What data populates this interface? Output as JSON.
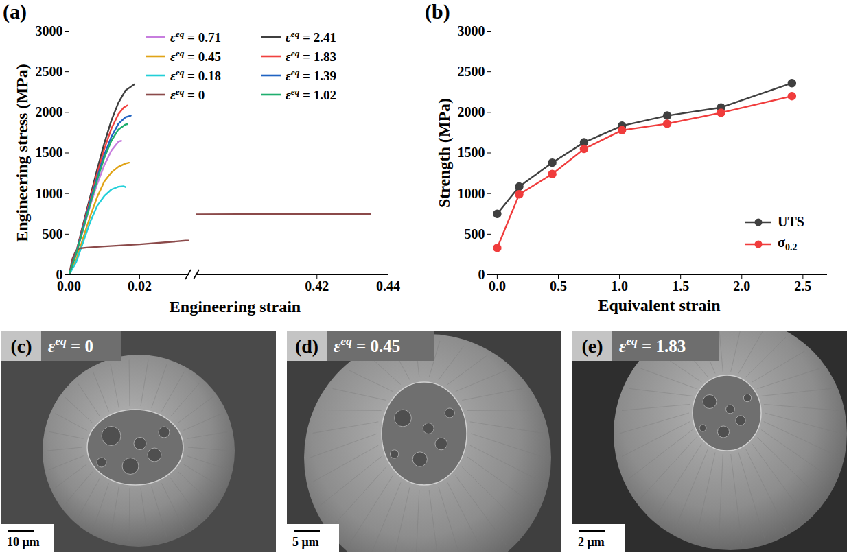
{
  "chart_data": [
    {
      "type": "line",
      "title": "(a)",
      "x_label": "Engineering strain",
      "y_label": "Engineering stress (MPa)",
      "xlim": [
        0,
        0.44
      ],
      "xbreak": [
        0.034,
        0.386
      ],
      "xticks": [
        {
          "value": 0,
          "label": "0.00"
        },
        0.02,
        0.42,
        0.44
      ],
      "ylim": [
        0,
        3000
      ],
      "yticks": [
        0,
        500,
        1000,
        1500,
        2000,
        2500,
        3000
      ],
      "grid": false,
      "legend": "top-right",
      "series": [
        {
          "name": "εeq = 0.71",
          "color": "#c77dde",
          "line_style": "solid",
          "x": [
            0,
            0.002,
            0.004,
            0.006,
            0.008,
            0.01,
            0.012,
            0.014,
            0.0148
          ],
          "values": [
            0,
            250,
            550,
            850,
            1120,
            1350,
            1530,
            1640,
            1650
          ]
        },
        {
          "name": "εeq = 0.45",
          "color": "#e0a317",
          "line_style": "solid",
          "x": [
            0,
            0.002,
            0.004,
            0.006,
            0.008,
            0.01,
            0.012,
            0.014,
            0.016,
            0.017
          ],
          "values": [
            0,
            180,
            450,
            720,
            960,
            1150,
            1260,
            1330,
            1370,
            1380
          ]
        },
        {
          "name": "εeq = 0.18",
          "color": "#22cfd8",
          "line_style": "solid",
          "x": [
            0,
            0.002,
            0.004,
            0.006,
            0.008,
            0.01,
            0.012,
            0.014,
            0.0155,
            0.016
          ],
          "values": [
            0,
            150,
            400,
            650,
            850,
            970,
            1050,
            1085,
            1090,
            1080
          ]
        },
        {
          "name": "εeq = 0",
          "color": "#8b4a4a",
          "line_style": "solid",
          "x": [
            0,
            0.001,
            0.002,
            0.003,
            0.005,
            0.01,
            0.02,
            0.033,
            0.386,
            0.41,
            0.435
          ],
          "values": [
            0,
            200,
            300,
            325,
            335,
            350,
            375,
            420,
            745,
            748,
            750
          ]
        },
        {
          "name": "εeq = 2.41",
          "color": "#3f3f3f",
          "line_style": "solid",
          "x": [
            0,
            0.002,
            0.004,
            0.006,
            0.008,
            0.01,
            0.012,
            0.014,
            0.016,
            0.0185
          ],
          "values": [
            0,
            270,
            620,
            960,
            1300,
            1620,
            1900,
            2120,
            2270,
            2345
          ]
        },
        {
          "name": "εeq = 1.83",
          "color": "#f0413f",
          "line_style": "solid",
          "x": [
            0,
            0.002,
            0.004,
            0.006,
            0.008,
            0.01,
            0.012,
            0.014,
            0.0155,
            0.0165
          ],
          "values": [
            0,
            270,
            600,
            930,
            1250,
            1550,
            1800,
            1980,
            2060,
            2085
          ]
        },
        {
          "name": "εeq = 1.39",
          "color": "#1f63c2",
          "line_style": "solid",
          "x": [
            0,
            0.002,
            0.004,
            0.006,
            0.008,
            0.01,
            0.012,
            0.014,
            0.016,
            0.0175
          ],
          "values": [
            0,
            260,
            580,
            900,
            1200,
            1480,
            1700,
            1860,
            1940,
            1960
          ]
        },
        {
          "name": "εeq = 1.02",
          "color": "#1fae6e",
          "line_style": "solid",
          "x": [
            0,
            0.002,
            0.004,
            0.006,
            0.008,
            0.01,
            0.012,
            0.014,
            0.016,
            0.0165
          ],
          "values": [
            0,
            250,
            560,
            870,
            1170,
            1440,
            1650,
            1790,
            1850,
            1855
          ]
        }
      ]
    },
    {
      "type": "line",
      "title": "(b)",
      "x_label": "Equivalent strain",
      "y_label": "Strength (MPa)",
      "xlim": [
        -0.05,
        2.7
      ],
      "xticks": [
        {
          "value": 0,
          "label": "0.0"
        },
        0.5,
        {
          "value": 1,
          "label": "1.0"
        },
        1.5,
        {
          "value": 2,
          "label": "2.0"
        },
        2.5
      ],
      "ylim": [
        0,
        3000
      ],
      "yticks": [
        0,
        500,
        1000,
        1500,
        2000,
        2500,
        3000
      ],
      "grid": false,
      "legend": "bottom-right",
      "x": [
        0,
        0.18,
        0.45,
        0.71,
        1.02,
        1.39,
        1.83,
        2.41
      ],
      "series": [
        {
          "name": "UTS",
          "color": "#404040",
          "marker": "circle",
          "line_style": "solid",
          "values": [
            750,
            1085,
            1380,
            1630,
            1835,
            1960,
            2060,
            2360
          ],
          "errors": [
            15,
            40,
            35,
            35,
            30,
            40,
            30,
            40
          ]
        },
        {
          "name": "σ0.2",
          "color": "#f03c3c",
          "marker": "circle",
          "line_style": "solid",
          "values": [
            330,
            990,
            1240,
            1550,
            1780,
            1860,
            1995,
            2200
          ],
          "errors": [
            20,
            30,
            25,
            40,
            30,
            25,
            35,
            30
          ]
        }
      ]
    }
  ],
  "images": [
    {
      "label": "(c)",
      "caption": "εeq = 0",
      "scale_bar": "10 μm"
    },
    {
      "label": "(d)",
      "caption": "εeq = 0.45",
      "scale_bar": "5 μm"
    },
    {
      "label": "(e)",
      "caption": "εeq = 1.83",
      "scale_bar": "2 μm"
    }
  ]
}
